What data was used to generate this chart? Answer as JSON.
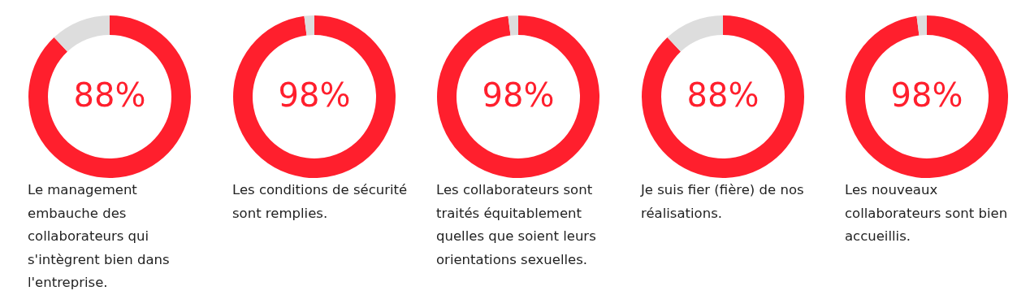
{
  "chart_data": [
    {
      "type": "donut",
      "categories": [
        null,
        null
      ],
      "values": [
        88,
        12
      ],
      "colors": [
        "#ff1f2d",
        "#dddddd"
      ],
      "value_labels": [
        "88%",
        null
      ],
      "annotations": [
        "Le management embauche des collaborateurs qui s'intègrent bien dans l'entreprise."
      ]
    },
    {
      "type": "donut",
      "categories": [
        null,
        null
      ],
      "values": [
        98,
        2
      ],
      "colors": [
        "#ff1f2d",
        "#dddddd"
      ],
      "value_labels": [
        "98%",
        null
      ],
      "annotations": [
        "Les conditions de sécurité sont remplies."
      ]
    },
    {
      "type": "donut",
      "categories": [
        null,
        null
      ],
      "values": [
        98,
        2
      ],
      "colors": [
        "#ff1f2d",
        "#dddddd"
      ],
      "value_labels": [
        "98%",
        null
      ],
      "annotations": [
        "Les collaborateurs sont traités équitablement quelles que soient leurs orientations sexuelles."
      ]
    },
    {
      "type": "donut",
      "categories": [
        null,
        null
      ],
      "values": [
        88,
        12
      ],
      "colors": [
        "#ff1f2d",
        "#dddddd"
      ],
      "value_labels": [
        "88%",
        null
      ],
      "annotations": [
        "Je suis fier (fière) de nos réalisations."
      ]
    },
    {
      "type": "donut",
      "categories": [
        null,
        null
      ],
      "values": [
        98,
        2
      ],
      "colors": [
        "#ff1f2d",
        "#dddddd"
      ],
      "value_labels": [
        "98%",
        null
      ],
      "annotations": [
        "Les nouveaux collaborateurs sont bien accueillis."
      ]
    }
  ]
}
